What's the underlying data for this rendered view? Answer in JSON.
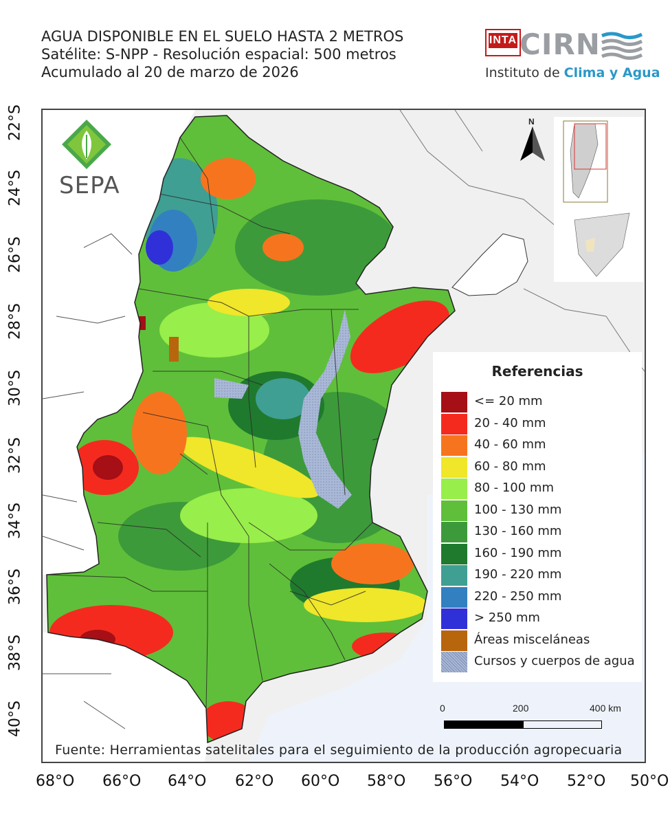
{
  "title": {
    "line1": "AGUA DISPONIBLE EN EL SUELO HASTA 2 METROS",
    "line2": "Satélite: S-NPP - Resolución espacial: 500 metros",
    "line3": "Acumulado al 20 de marzo de 2026"
  },
  "logos": {
    "inta": "INTA",
    "cirn": "CIRN",
    "institute_prefix": "Instituto de ",
    "institute_highlight": "Clima y Agua",
    "sepa": "SEPA"
  },
  "north_label": "N",
  "lat_labels": [
    "22°S",
    "24°S",
    "26°S",
    "28°S",
    "30°S",
    "32°S",
    "34°S",
    "36°S",
    "38°S",
    "40°S"
  ],
  "lon_labels": [
    "68°O",
    "66°O",
    "64°O",
    "62°O",
    "60°O",
    "58°O",
    "56°O",
    "54°O",
    "52°O",
    "50°O"
  ],
  "legend": {
    "title": "Referencias",
    "items": [
      {
        "label": "<= 20 mm",
        "color": "#a50f15"
      },
      {
        "label": "20 - 40 mm",
        "color": "#f52a1f"
      },
      {
        "label": "40 - 60 mm",
        "color": "#f7741e"
      },
      {
        "label": "60 - 80 mm",
        "color": "#f0e62a"
      },
      {
        "label": "80 - 100 mm",
        "color": "#98ee4a"
      },
      {
        "label": "100 - 130 mm",
        "color": "#5fbf3a"
      },
      {
        "label": "130 - 160 mm",
        "color": "#3d9a3a"
      },
      {
        "label": "160 - 190 mm",
        "color": "#1f7a2e"
      },
      {
        "label": "190 - 220 mm",
        "color": "#3f9f93"
      },
      {
        "label": "220 - 250 mm",
        "color": "#3280c0"
      },
      {
        "label": "> 250 mm",
        "color": "#3030d8"
      },
      {
        "label": "Áreas misceláneas",
        "color": "#b8660e"
      },
      {
        "label": "Cursos y cuerpos de agua",
        "color": "#a9b8d6"
      }
    ]
  },
  "scale_bar": {
    "labels": [
      "0",
      "200",
      "400 km"
    ]
  },
  "source": "Fuente: Herramientas satelitales para el seguimiento de la producción agropecuaria"
}
